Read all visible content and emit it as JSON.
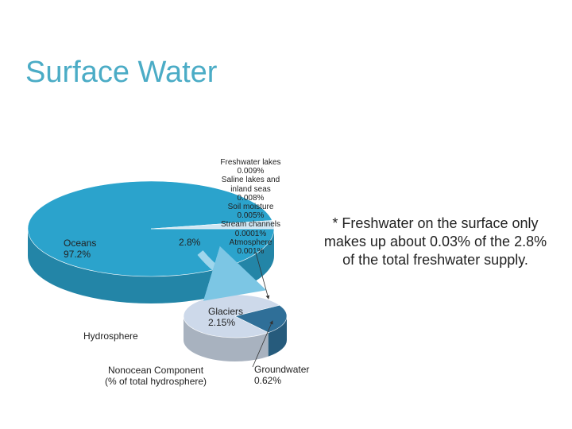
{
  "title": "Surface Water",
  "note": "* Freshwater on the surface only makes up about 0.03% of the 2.8% of the total freshwater supply.",
  "figure": {
    "hydrosphere": {
      "label": "Hydrosphere",
      "slices": [
        {
          "name": "Oceans",
          "value": 97.2,
          "value_label": "97.2%",
          "color": "#2ba3cc"
        },
        {
          "value": 2.8,
          "value_label": "2.8%",
          "color": "#cfe6f2"
        }
      ]
    },
    "nonocean": {
      "label": "Nonocean Component",
      "sublabel": "(% of total hydrosphere)",
      "slices": [
        {
          "name": "Glaciers",
          "value": 2.15,
          "value_label": "2.15%",
          "color": "#cdd9ea"
        },
        {
          "name": "Groundwater",
          "value": 0.62,
          "value_label": "0.62%",
          "color": "#2f6f98"
        }
      ]
    },
    "other": [
      {
        "name": "Freshwater lakes",
        "value_label": "0.009%"
      },
      {
        "name": "Saline lakes and inland seas",
        "value_label": "0.008%"
      },
      {
        "name": "Soil moisture",
        "value_label": "0.005%"
      },
      {
        "name": "Stream channels",
        "value_label": "0.0001%"
      },
      {
        "name": "Atmosphere",
        "value_label": "0.001%"
      }
    ]
  }
}
